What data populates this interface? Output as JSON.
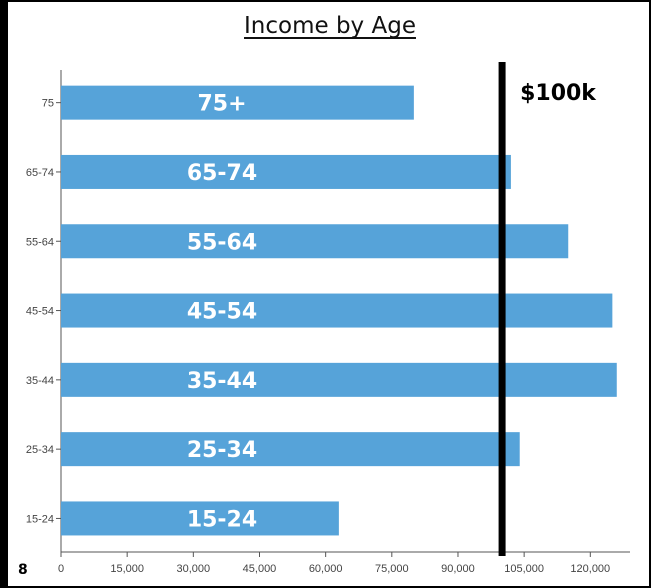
{
  "page_number": "8",
  "chart_data": {
    "type": "bar",
    "orientation": "horizontal",
    "title": "Income by Age",
    "xlabel": "",
    "ylabel": "",
    "categories": [
      "75",
      "65-74",
      "55-64",
      "45-54",
      "35-44",
      "25-34",
      "15-24"
    ],
    "bar_labels": [
      "75+",
      "65-74",
      "55-64",
      "45-54",
      "35-44",
      "25-34",
      "15-24"
    ],
    "values": [
      80000,
      102000,
      115000,
      125000,
      126000,
      104000,
      63000
    ],
    "xlim": [
      0,
      129000
    ],
    "x_ticks": [
      0,
      15000,
      30000,
      45000,
      60000,
      75000,
      90000,
      105000,
      120000
    ],
    "x_tick_labels": [
      "0",
      "15,000",
      "30,000",
      "45,000",
      "60,000",
      "75,000",
      "90,000",
      "105,000",
      "120,000"
    ],
    "reference_line": {
      "value": 100000,
      "label": "$100k",
      "color": "#000000"
    },
    "bar_color": "#56a3d9",
    "grid": false,
    "legend": "none"
  }
}
